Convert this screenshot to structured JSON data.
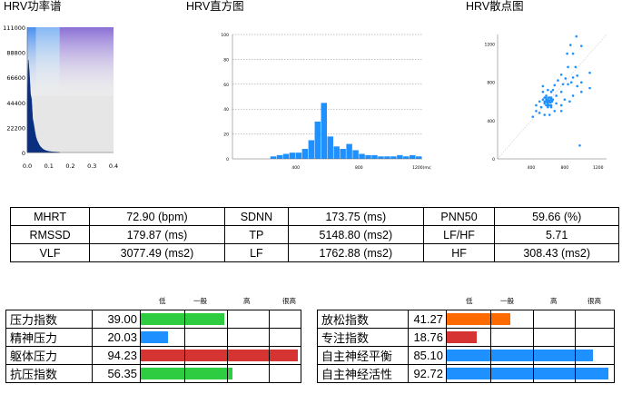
{
  "titles": {
    "power": "HRV功率谱",
    "hist": "HRV直方图",
    "scatter": "HRV散点图"
  },
  "colors": {
    "green": "#2ecc40",
    "blue": "#1e90ff",
    "red": "#d63333",
    "orange": "#ff6a00"
  },
  "chart_data": [
    {
      "type": "area",
      "title": "HRV功率谱",
      "x_ticks": [
        "0.0",
        "0.1",
        "0.2",
        "0.3",
        "0.4"
      ],
      "y_ticks": [
        "111000",
        "88800",
        "66600",
        "44400",
        "22200",
        "0"
      ],
      "xlim": [
        0,
        0.4
      ],
      "ylim": [
        0,
        111000
      ],
      "x": [
        0.0,
        0.005,
        0.01,
        0.015,
        0.02,
        0.025,
        0.03,
        0.035,
        0.04,
        0.045,
        0.05,
        0.055,
        0.06,
        0.065,
        0.07,
        0.075,
        0.08,
        0.09,
        0.1,
        0.12,
        0.15
      ],
      "y": [
        45000,
        82000,
        70000,
        52000,
        47000,
        30000,
        25000,
        19000,
        14000,
        11000,
        9000,
        7000,
        5500,
        4500,
        3500,
        2800,
        2200,
        1500,
        1000,
        500,
        200
      ],
      "bands": [
        {
          "from": 0,
          "to": 0.04,
          "color": "#4a8ff0"
        },
        {
          "from": 0.04,
          "to": 0.15,
          "color": "#86b8f4"
        },
        {
          "from": 0.15,
          "to": 0.4,
          "color": "#8a6fd6"
        }
      ]
    },
    {
      "type": "bar",
      "title": "HRV直方图",
      "x_ticks": [
        "400",
        "800",
        "1200(ms)"
      ],
      "y_ticks": [
        "100",
        "80",
        "60",
        "40",
        "20",
        "0"
      ],
      "xlim": [
        0,
        1200
      ],
      "ylim": [
        0,
        100
      ],
      "bins": [
        240,
        280,
        320,
        360,
        400,
        440,
        480,
        520,
        560,
        600,
        640,
        680,
        720,
        760,
        800,
        840,
        880,
        920,
        960,
        1000,
        1040,
        1080,
        1120,
        1160
      ],
      "bin_width": 40,
      "values": [
        2,
        3,
        4,
        5,
        5,
        8,
        15,
        30,
        45,
        18,
        10,
        8,
        12,
        7,
        4,
        3,
        3,
        2,
        2,
        2,
        3,
        2,
        3,
        2
      ]
    },
    {
      "type": "scatter",
      "title": "HRV散点图",
      "x_ticks": [
        "400",
        "800",
        "1200"
      ],
      "y_ticks": [
        "1200",
        "800",
        "400",
        "0"
      ],
      "xlim": [
        0,
        1300
      ],
      "ylim": [
        0,
        1300
      ],
      "points": [
        [
          940,
          1280
        ],
        [
          1000,
          1180
        ],
        [
          870,
          1190
        ],
        [
          830,
          1100
        ],
        [
          900,
          1100
        ],
        [
          840,
          960
        ],
        [
          930,
          960
        ],
        [
          1100,
          900
        ],
        [
          760,
          880
        ],
        [
          810,
          840
        ],
        [
          900,
          850
        ],
        [
          950,
          870
        ],
        [
          720,
          820
        ],
        [
          780,
          780
        ],
        [
          840,
          780
        ],
        [
          880,
          800
        ],
        [
          950,
          760
        ],
        [
          1000,
          800
        ],
        [
          680,
          770
        ],
        [
          760,
          700
        ],
        [
          600,
          720
        ],
        [
          640,
          700
        ],
        [
          580,
          660
        ],
        [
          560,
          640
        ],
        [
          620,
          640
        ],
        [
          640,
          620
        ],
        [
          660,
          620
        ],
        [
          600,
          600
        ],
        [
          620,
          600
        ],
        [
          540,
          620
        ],
        [
          580,
          600
        ],
        [
          560,
          580
        ],
        [
          600,
          580
        ],
        [
          500,
          600
        ],
        [
          700,
          580
        ],
        [
          760,
          560
        ],
        [
          520,
          540
        ],
        [
          580,
          560
        ],
        [
          640,
          560
        ],
        [
          460,
          560
        ],
        [
          760,
          500
        ],
        [
          680,
          500
        ],
        [
          500,
          480
        ],
        [
          620,
          460
        ],
        [
          560,
          460
        ],
        [
          860,
          600
        ],
        [
          900,
          660
        ],
        [
          1000,
          700
        ],
        [
          1100,
          740
        ],
        [
          800,
          620
        ],
        [
          540,
          700
        ],
        [
          700,
          660
        ],
        [
          540,
          760
        ],
        [
          460,
          500
        ],
        [
          420,
          440
        ],
        [
          980,
          140
        ],
        [
          660,
          720
        ],
        [
          600,
          540
        ],
        [
          640,
          540
        ],
        [
          620,
          560
        ],
        [
          600,
          620
        ],
        [
          580,
          620
        ],
        [
          610,
          600
        ],
        [
          590,
          590
        ],
        [
          630,
          590
        ],
        [
          620,
          610
        ],
        [
          600,
          560
        ],
        [
          560,
          600
        ],
        [
          640,
          640
        ],
        [
          580,
          640
        ],
        [
          610,
          640
        ],
        [
          650,
          600
        ]
      ]
    }
  ],
  "metrics": [
    [
      "MHRT",
      "72.90 (bpm)",
      "SDNN",
      "173.75 (ms)",
      "PNN50",
      "59.66 (%)"
    ],
    [
      "RMSSD",
      "179.87 (ms)",
      "TP",
      "5148.80 (ms2)",
      "LF/HF",
      "5.71"
    ],
    [
      "VLF",
      "3077.49 (ms2)",
      "LF",
      "1762.88 (ms2)",
      "HF",
      "308.43 (ms2)"
    ]
  ],
  "levels": [
    "低",
    "一般",
    "高",
    "很高"
  ],
  "left_indices": [
    {
      "label": "压力指数",
      "value": "39.00",
      "fraction": 0.52,
      "color": "#2ecc40"
    },
    {
      "label": "精神压力",
      "value": "20.03",
      "fraction": 0.17,
      "color": "#1e90ff"
    },
    {
      "label": "躯体压力",
      "value": "94.23",
      "fraction": 0.98,
      "color": "#d63333"
    },
    {
      "label": "抗压指数",
      "value": "56.35",
      "fraction": 0.57,
      "color": "#2ecc40"
    }
  ],
  "right_indices": [
    {
      "label": "放松指数",
      "value": "41.27",
      "fraction": 0.38,
      "color": "#ff6a00"
    },
    {
      "label": "专注指数",
      "value": "18.76",
      "fraction": 0.18,
      "color": "#d63333"
    },
    {
      "label": "自主神经平衡",
      "value": "85.10",
      "fraction": 0.87,
      "color": "#1e90ff"
    },
    {
      "label": "自主神经活性",
      "value": "92.72",
      "fraction": 0.96,
      "color": "#1e90ff"
    }
  ]
}
